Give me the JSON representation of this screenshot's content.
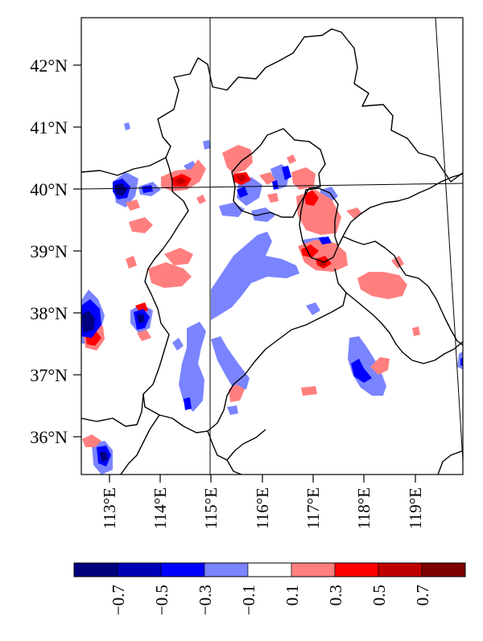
{
  "map": {
    "lat_labels": [
      "42°N",
      "41°N",
      "40°N",
      "39°N",
      "38°N",
      "37°N",
      "36°N"
    ],
    "lon_labels": [
      "113°E",
      "114°E",
      "115°E",
      "116°E",
      "117°E",
      "118°E",
      "119°E"
    ]
  },
  "colorbar": {
    "labels": [
      "−0.7",
      "−0.5",
      "−0.3",
      "−0.1",
      "0.1",
      "0.3",
      "0.5",
      "0.7"
    ],
    "colors": [
      "#00007f",
      "#0000b8",
      "#0000ff",
      "#7a84ff",
      "#ffffff",
      "#ff7f7f",
      "#ff0000",
      "#c00000",
      "#7f0000"
    ]
  },
  "palette": {
    "weak_negative": "#7a84ff",
    "negative": "#0000ff",
    "strong_negative": "#00007f",
    "weak_positive": "#ff7f7f",
    "positive": "#ff0000",
    "strong_positive": "#c00000"
  }
}
